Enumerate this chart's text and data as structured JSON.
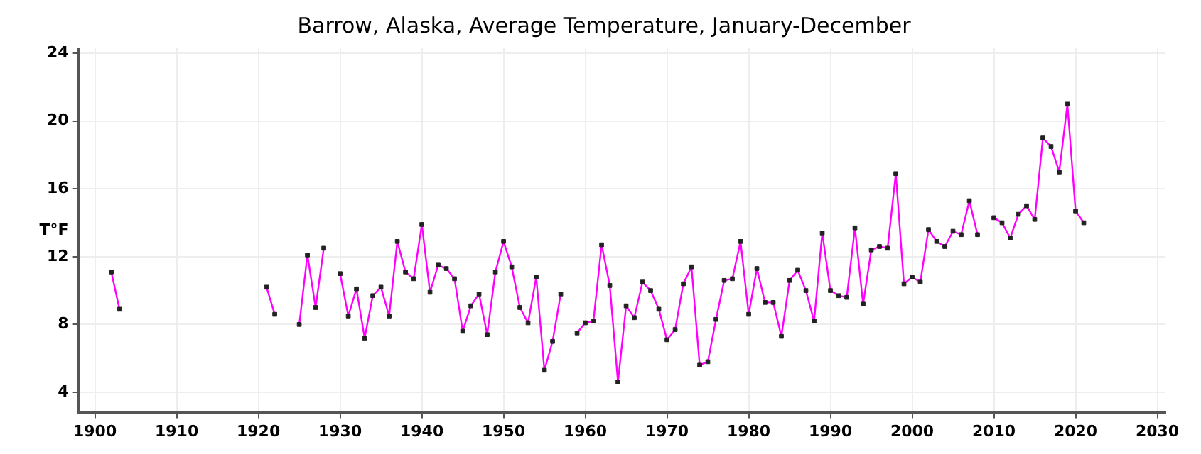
{
  "chart_data": {
    "type": "line",
    "title": "Barrow, Alaska, Average Temperature, January-December",
    "ylabel": "T°F",
    "x": [
      1902,
      1903,
      1904,
      1921,
      1922,
      1923,
      1924,
      1925,
      1926,
      1927,
      1928,
      1929,
      1930,
      1931,
      1932,
      1933,
      1934,
      1935,
      1936,
      1937,
      1938,
      1939,
      1940,
      1941,
      1942,
      1943,
      1944,
      1945,
      1946,
      1947,
      1948,
      1949,
      1950,
      1951,
      1952,
      1953,
      1954,
      1955,
      1956,
      1957,
      1958,
      1959,
      1960,
      1961,
      1962,
      1963,
      1964,
      1965,
      1966,
      1967,
      1968,
      1969,
      1970,
      1971,
      1972,
      1973,
      1974,
      1975,
      1976,
      1977,
      1978,
      1979,
      1980,
      1981,
      1982,
      1983,
      1984,
      1985,
      1986,
      1987,
      1988,
      1989,
      1990,
      1991,
      1992,
      1993,
      1994,
      1995,
      1996,
      1997,
      1998,
      1999,
      2000,
      2001,
      2002,
      2003,
      2004,
      2005,
      2006,
      2007,
      2008,
      2009,
      2010,
      2011,
      2012,
      2013,
      2014,
      2015,
      2016,
      2017,
      2018,
      2019,
      2020,
      2021
    ],
    "series": [
      {
        "color": "#ff00ff",
        "values": [
          11.1,
          8.9,
          null,
          10.2,
          8.6,
          null,
          null,
          8.0,
          12.1,
          9.0,
          12.5,
          null,
          11.0,
          8.5,
          10.1,
          7.2,
          9.7,
          10.2,
          8.5,
          12.9,
          11.1,
          10.7,
          13.9,
          9.9,
          11.5,
          11.3,
          10.7,
          7.6,
          9.1,
          9.8,
          7.4,
          11.1,
          12.9,
          11.4,
          9.0,
          8.1,
          10.8,
          5.3,
          7.0,
          9.8,
          null,
          7.5,
          8.1,
          8.2,
          12.7,
          10.3,
          4.6,
          9.1,
          8.4,
          10.5,
          10.0,
          8.9,
          7.1,
          7.7,
          10.4,
          11.4,
          5.6,
          5.8,
          8.3,
          10.6,
          10.7,
          12.9,
          8.6,
          11.3,
          9.3,
          9.3,
          7.3,
          10.6,
          11.2,
          10.0,
          8.2,
          13.4,
          10.0,
          9.7,
          9.6,
          13.7,
          9.2,
          12.4,
          12.6,
          12.5,
          16.9,
          10.4,
          10.8,
          10.5,
          13.6,
          12.9,
          12.6,
          13.5,
          13.3,
          15.3,
          13.3,
          null,
          14.3,
          14.0,
          13.1,
          14.5,
          15.0,
          14.2,
          19.0,
          18.5,
          17.0,
          21.0,
          14.7,
          14.0
        ]
      }
    ],
    "xlim": [
      1898,
      2031
    ],
    "xticks": [
      1900,
      1910,
      1920,
      1930,
      1940,
      1950,
      1960,
      1970,
      1980,
      1990,
      2000,
      2010,
      2020,
      2030
    ],
    "ylim": [
      2.8,
      24.3
    ],
    "yticks": [
      4,
      8,
      12,
      16,
      20,
      24
    ],
    "grid": true,
    "legend": false,
    "marker": "square",
    "line_style": "solid"
  }
}
